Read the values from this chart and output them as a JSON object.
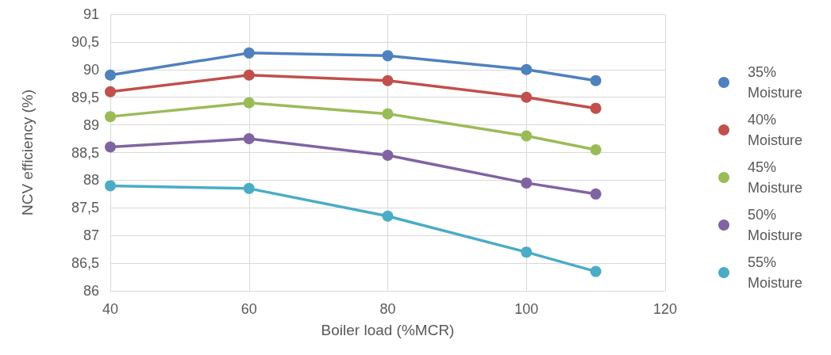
{
  "chart_data": {
    "type": "line",
    "xlabel": "Boiler load (%MCR)",
    "ylabel": "NCV efficiency (%)",
    "x": [
      40,
      60,
      80,
      100,
      110
    ],
    "series": [
      {
        "name": "35% Moisture",
        "color": "#4f81bd",
        "values": [
          89.9,
          90.3,
          90.25,
          90.0,
          89.8
        ]
      },
      {
        "name": "40% Moisture",
        "color": "#c0504d",
        "values": [
          89.6,
          89.9,
          89.8,
          89.5,
          89.3
        ]
      },
      {
        "name": "45% Moisture",
        "color": "#9bbb59",
        "values": [
          89.15,
          89.4,
          89.2,
          88.8,
          88.55
        ]
      },
      {
        "name": "50% Moisture",
        "color": "#8064a2",
        "values": [
          88.6,
          88.75,
          88.45,
          87.95,
          87.75
        ]
      },
      {
        "name": "55% Moisture",
        "color": "#4bacc6",
        "values": [
          87.9,
          87.85,
          87.35,
          86.7,
          86.35
        ]
      }
    ],
    "xlim": [
      40,
      120
    ],
    "xticks": [
      40,
      60,
      80,
      100,
      120
    ],
    "ylim": [
      86,
      91
    ],
    "yticks": [
      86,
      {
        "value": 86.5,
        "label": "86,5"
      },
      87,
      {
        "value": 87.5,
        "label": "87,5"
      },
      88,
      {
        "value": 88.5,
        "label": "88,5"
      },
      89,
      {
        "value": 89.5,
        "label": "89,5"
      },
      90,
      {
        "value": 90.5,
        "label": "90,5"
      },
      91
    ],
    "grid": true,
    "legend": "right",
    "marker": "circle",
    "line_style": "solid"
  }
}
